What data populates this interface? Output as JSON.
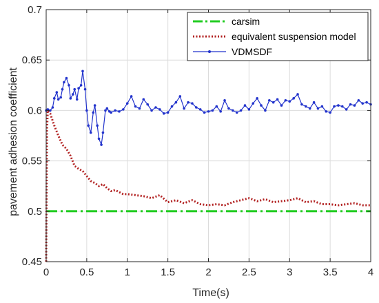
{
  "chart_data": {
    "type": "line",
    "xlabel": "Time(s)",
    "ylabel": "pavement adhesion coefficient",
    "xlim": [
      0,
      4
    ],
    "ylim": [
      0.45,
      0.7
    ],
    "x_ticks": [
      0,
      0.5,
      1,
      1.5,
      2,
      2.5,
      3,
      3.5,
      4
    ],
    "y_ticks": [
      0.45,
      0.5,
      0.55,
      0.6,
      0.65,
      0.7
    ],
    "x_tick_labels": [
      "0",
      "0.5",
      "1",
      "1.5",
      "2",
      "2.5",
      "3",
      "3.5",
      "4"
    ],
    "y_tick_labels": [
      "0.45",
      "0.5",
      "0.55",
      "0.6",
      "0.65",
      "0.7"
    ],
    "grid": true,
    "legend_position": "top-right",
    "series": [
      {
        "name": "carsim",
        "color": "#22cc22",
        "style": "dash-dot",
        "x": [
          0,
          4
        ],
        "y": [
          0.5,
          0.5
        ]
      },
      {
        "name": "equivalent suspension model",
        "color": "#b22222",
        "style": "dotted",
        "x": [
          0,
          0.01,
          0.02,
          0.05,
          0.1,
          0.15,
          0.2,
          0.25,
          0.3,
          0.35,
          0.4,
          0.45,
          0.5,
          0.55,
          0.6,
          0.65,
          0.7,
          0.75,
          0.8,
          0.85,
          0.9,
          0.95,
          1.0,
          1.1,
          1.2,
          1.3,
          1.4,
          1.5,
          1.6,
          1.7,
          1.8,
          1.9,
          2.0,
          2.1,
          2.2,
          2.3,
          2.4,
          2.5,
          2.6,
          2.7,
          2.8,
          2.9,
          3.0,
          3.1,
          3.2,
          3.3,
          3.4,
          3.5,
          3.6,
          3.7,
          3.8,
          3.9,
          4.0
        ],
        "y": [
          0.45,
          0.58,
          0.6,
          0.597,
          0.585,
          0.575,
          0.566,
          0.562,
          0.555,
          0.545,
          0.542,
          0.54,
          0.535,
          0.53,
          0.528,
          0.525,
          0.527,
          0.523,
          0.52,
          0.521,
          0.519,
          0.517,
          0.517,
          0.516,
          0.515,
          0.513,
          0.516,
          0.509,
          0.511,
          0.508,
          0.511,
          0.507,
          0.506,
          0.507,
          0.506,
          0.509,
          0.511,
          0.513,
          0.51,
          0.512,
          0.509,
          0.51,
          0.511,
          0.513,
          0.509,
          0.51,
          0.507,
          0.507,
          0.506,
          0.507,
          0.508,
          0.506,
          0.506
        ]
      },
      {
        "name": "VDMSDF",
        "color": "#2233cc",
        "style": "solid-dot",
        "x": [
          0,
          0.02,
          0.05,
          0.08,
          0.1,
          0.13,
          0.15,
          0.18,
          0.2,
          0.22,
          0.25,
          0.28,
          0.3,
          0.33,
          0.35,
          0.38,
          0.4,
          0.43,
          0.45,
          0.48,
          0.5,
          0.52,
          0.55,
          0.58,
          0.6,
          0.63,
          0.65,
          0.68,
          0.7,
          0.73,
          0.75,
          0.78,
          0.8,
          0.85,
          0.9,
          0.95,
          1.0,
          1.05,
          1.1,
          1.15,
          1.2,
          1.25,
          1.3,
          1.35,
          1.4,
          1.45,
          1.5,
          1.55,
          1.6,
          1.65,
          1.7,
          1.75,
          1.8,
          1.85,
          1.9,
          1.95,
          2.0,
          2.05,
          2.1,
          2.15,
          2.2,
          2.25,
          2.3,
          2.35,
          2.4,
          2.45,
          2.5,
          2.55,
          2.6,
          2.65,
          2.7,
          2.75,
          2.8,
          2.85,
          2.9,
          2.95,
          3.0,
          3.05,
          3.1,
          3.15,
          3.2,
          3.25,
          3.3,
          3.35,
          3.4,
          3.45,
          3.5,
          3.55,
          3.6,
          3.65,
          3.7,
          3.75,
          3.8,
          3.85,
          3.9,
          3.95,
          4.0
        ],
        "y": [
          0.6,
          0.601,
          0.6,
          0.603,
          0.612,
          0.618,
          0.611,
          0.613,
          0.621,
          0.628,
          0.632,
          0.625,
          0.612,
          0.616,
          0.621,
          0.611,
          0.622,
          0.625,
          0.639,
          0.621,
          0.6,
          0.585,
          0.578,
          0.598,
          0.605,
          0.585,
          0.572,
          0.566,
          0.578,
          0.6,
          0.602,
          0.599,
          0.598,
          0.6,
          0.599,
          0.601,
          0.607,
          0.614,
          0.604,
          0.602,
          0.611,
          0.606,
          0.6,
          0.603,
          0.601,
          0.597,
          0.598,
          0.604,
          0.608,
          0.614,
          0.602,
          0.608,
          0.607,
          0.603,
          0.601,
          0.598,
          0.599,
          0.6,
          0.604,
          0.599,
          0.61,
          0.602,
          0.6,
          0.598,
          0.6,
          0.605,
          0.601,
          0.607,
          0.612,
          0.605,
          0.6,
          0.61,
          0.608,
          0.611,
          0.605,
          0.61,
          0.609,
          0.612,
          0.616,
          0.606,
          0.604,
          0.602,
          0.608,
          0.602,
          0.604,
          0.599,
          0.598,
          0.604,
          0.605,
          0.604,
          0.601,
          0.606,
          0.605,
          0.61,
          0.607,
          0.608,
          0.606
        ]
      }
    ]
  }
}
